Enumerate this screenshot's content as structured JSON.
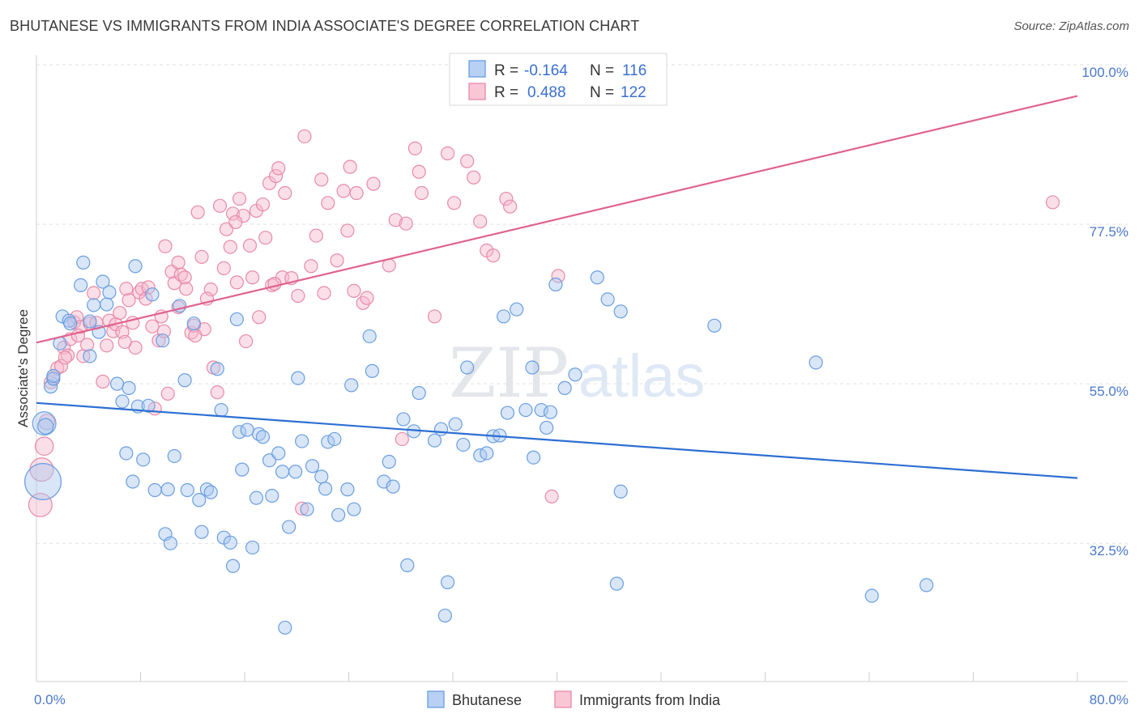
{
  "header": {
    "title": "BHUTANESE VS IMMIGRANTS FROM INDIA ASSOCIATE'S DEGREE CORRELATION CHART",
    "source": "Source: ZipAtlas.com"
  },
  "legend_box": {
    "rows": [
      {
        "r_label": "R =",
        "r_value": "-0.164",
        "n_label": "N =",
        "n_value": "116"
      },
      {
        "r_label": "R =",
        "r_value": "0.488",
        "n_label": "N =",
        "n_value": "122"
      }
    ]
  },
  "watermark": {
    "zip": "ZIP",
    "atlas": "atlas"
  },
  "colors": {
    "blue_fill": "#a9c8f0",
    "blue_stroke": "#6a9ee0",
    "blue_line": "#2d6fd2",
    "pink_fill": "#f7b9cc",
    "pink_stroke": "#e88aa8",
    "pink_line": "#e0628f"
  },
  "chart_data": {
    "type": "scatter",
    "title": "BHUTANESE VS IMMIGRANTS FROM INDIA ASSOCIATE'S DEGREE CORRELATION CHART",
    "xlabel": "",
    "ylabel": "Associate's Degree",
    "xlim": [
      0,
      80
    ],
    "ylim": [
      13,
      100
    ],
    "x_tick_labels": [
      "0.0%",
      "80.0%"
    ],
    "y_ticks": [
      32.5,
      55.0,
      77.5,
      100.0
    ],
    "y_tick_labels": [
      "32.5%",
      "55.0%",
      "77.5%",
      "100.0%"
    ],
    "grid": "horizontal dashed",
    "legend_position": "top-center",
    "series": [
      {
        "name": "Bhutanese",
        "r": -0.164,
        "n": 116,
        "trend": {
          "x": [
            0,
            80
          ],
          "y": [
            52.3,
            41.7
          ]
        },
        "points": [
          [
            0.6,
            49.4,
            9
          ],
          [
            0.5,
            41.2,
            14
          ],
          [
            0.7,
            49.0,
            6
          ],
          [
            1.1,
            54.6,
            5
          ],
          [
            1.3,
            55.7,
            5
          ],
          [
            1.8,
            60.7,
            5
          ],
          [
            2.0,
            64.5,
            5
          ],
          [
            2.5,
            63.9,
            5
          ],
          [
            3.4,
            68.9,
            5
          ],
          [
            3.6,
            72.1,
            5
          ],
          [
            4.1,
            58.9,
            5
          ],
          [
            4.4,
            66.1,
            5
          ],
          [
            4.8,
            62.3,
            5
          ],
          [
            5.1,
            69.4,
            5
          ],
          [
            5.4,
            66.2,
            5
          ],
          [
            5.6,
            67.9,
            5
          ],
          [
            6.2,
            55.0,
            5
          ],
          [
            6.6,
            52.5,
            5
          ],
          [
            6.9,
            45.2,
            5
          ],
          [
            7.1,
            54.4,
            5
          ],
          [
            7.4,
            41.2,
            5
          ],
          [
            7.6,
            71.6,
            5
          ],
          [
            7.8,
            51.8,
            5
          ],
          [
            8.2,
            44.3,
            5
          ],
          [
            8.6,
            51.9,
            5
          ],
          [
            8.9,
            67.6,
            5
          ],
          [
            9.1,
            40.0,
            5
          ],
          [
            9.7,
            61.1,
            5
          ],
          [
            9.9,
            33.8,
            5
          ],
          [
            10.1,
            40.1,
            5
          ],
          [
            10.3,
            32.5,
            5
          ],
          [
            10.6,
            44.8,
            5
          ],
          [
            11.0,
            66.0,
            5
          ],
          [
            11.4,
            55.5,
            5
          ],
          [
            11.6,
            40.0,
            5
          ],
          [
            12.1,
            63.5,
            5
          ],
          [
            12.5,
            38.6,
            5
          ],
          [
            12.7,
            34.1,
            5
          ],
          [
            13.1,
            40.1,
            5
          ],
          [
            13.4,
            39.7,
            5
          ],
          [
            13.9,
            57.1,
            5
          ],
          [
            14.2,
            51.3,
            5
          ],
          [
            14.4,
            33.3,
            5
          ],
          [
            14.9,
            32.6,
            5
          ],
          [
            15.1,
            29.3,
            5
          ],
          [
            15.4,
            64.1,
            5
          ],
          [
            15.6,
            48.2,
            5
          ],
          [
            15.8,
            42.9,
            5
          ],
          [
            16.2,
            48.5,
            5
          ],
          [
            16.6,
            31.9,
            5
          ],
          [
            16.9,
            38.9,
            5
          ],
          [
            17.1,
            47.9,
            5
          ],
          [
            17.4,
            47.5,
            5
          ],
          [
            17.9,
            44.2,
            5
          ],
          [
            18.1,
            39.2,
            5
          ],
          [
            18.6,
            45.2,
            5
          ],
          [
            18.9,
            42.6,
            5
          ],
          [
            19.1,
            20.6,
            5
          ],
          [
            19.4,
            34.8,
            5
          ],
          [
            19.9,
            42.6,
            5
          ],
          [
            20.1,
            55.8,
            5
          ],
          [
            20.4,
            46.9,
            5
          ],
          [
            20.8,
            37.3,
            5
          ],
          [
            21.2,
            43.4,
            5
          ],
          [
            21.9,
            41.9,
            5
          ],
          [
            22.2,
            40.2,
            5
          ],
          [
            22.4,
            46.8,
            5
          ],
          [
            22.9,
            47.2,
            5
          ],
          [
            23.2,
            36.5,
            5
          ],
          [
            23.9,
            40.1,
            5
          ],
          [
            24.2,
            54.8,
            5
          ],
          [
            24.4,
            37.3,
            5
          ],
          [
            25.6,
            61.7,
            5
          ],
          [
            25.8,
            56.8,
            5
          ],
          [
            26.7,
            41.2,
            5
          ],
          [
            27.1,
            44.0,
            5
          ],
          [
            27.4,
            40.5,
            5
          ],
          [
            28.2,
            50.0,
            5
          ],
          [
            28.5,
            29.4,
            5
          ],
          [
            29.0,
            48.3,
            5
          ],
          [
            29.4,
            53.7,
            5
          ],
          [
            30.6,
            47.0,
            5
          ],
          [
            31.1,
            48.6,
            5
          ],
          [
            31.6,
            27.0,
            5
          ],
          [
            31.4,
            22.3,
            5
          ],
          [
            32.2,
            49.3,
            5
          ],
          [
            32.8,
            46.4,
            5
          ],
          [
            33.1,
            57.3,
            5
          ],
          [
            34.1,
            44.9,
            5
          ],
          [
            34.6,
            45.2,
            5
          ],
          [
            35.1,
            47.6,
            5
          ],
          [
            35.6,
            47.7,
            5
          ],
          [
            35.9,
            64.5,
            5
          ],
          [
            36.2,
            50.9,
            5
          ],
          [
            36.9,
            65.5,
            5
          ],
          [
            37.6,
            51.3,
            5
          ],
          [
            38.1,
            57.3,
            5
          ],
          [
            38.2,
            44.6,
            5
          ],
          [
            38.8,
            51.3,
            5
          ],
          [
            39.2,
            48.8,
            5
          ],
          [
            39.5,
            51.0,
            5
          ],
          [
            39.9,
            69.0,
            5
          ],
          [
            40.6,
            54.4,
            5
          ],
          [
            41.4,
            56.3,
            5
          ],
          [
            43.1,
            70.0,
            5
          ],
          [
            43.9,
            66.9,
            5
          ],
          [
            44.6,
            26.8,
            5
          ],
          [
            44.9,
            39.8,
            5
          ],
          [
            44.9,
            65.2,
            5
          ],
          [
            52.1,
            63.2,
            5
          ],
          [
            59.9,
            58.0,
            5
          ],
          [
            64.2,
            25.1,
            5
          ],
          [
            68.4,
            26.6,
            5
          ],
          [
            4.1,
            63.8,
            5
          ],
          [
            2.6,
            63.5,
            5
          ],
          [
            1.3,
            56.1,
            5
          ]
        ]
      },
      {
        "name": "Immigrants from India",
        "r": 0.488,
        "n": 122,
        "trend": {
          "x": [
            0,
            80
          ],
          "y": [
            60.8,
            95.6
          ]
        },
        "points": [
          [
            0.3,
            37.9,
            9
          ],
          [
            0.4,
            42.9,
            9
          ],
          [
            0.6,
            46.2,
            7
          ],
          [
            0.8,
            49.6,
            6
          ],
          [
            1.1,
            55.2,
            5
          ],
          [
            1.3,
            55.8,
            5
          ],
          [
            1.6,
            57.2,
            5
          ],
          [
            1.9,
            57.5,
            5
          ],
          [
            2.1,
            60.1,
            5
          ],
          [
            2.4,
            59.0,
            5
          ],
          [
            2.6,
            61.3,
            5
          ],
          [
            2.9,
            63.7,
            5
          ],
          [
            3.1,
            64.4,
            5
          ],
          [
            3.4,
            63.0,
            5
          ],
          [
            3.6,
            58.9,
            5
          ],
          [
            3.9,
            60.5,
            5
          ],
          [
            4.1,
            63.5,
            5
          ],
          [
            4.4,
            67.8,
            5
          ],
          [
            4.6,
            63.6,
            5
          ],
          [
            5.1,
            55.3,
            5
          ],
          [
            5.4,
            60.4,
            5
          ],
          [
            5.6,
            63.9,
            5
          ],
          [
            5.9,
            62.4,
            5
          ],
          [
            6.1,
            63.4,
            5
          ],
          [
            6.4,
            65.0,
            5
          ],
          [
            6.6,
            62.3,
            5
          ],
          [
            6.9,
            68.4,
            5
          ],
          [
            7.1,
            66.8,
            5
          ],
          [
            7.4,
            63.6,
            5
          ],
          [
            7.6,
            60.1,
            5
          ],
          [
            7.9,
            67.9,
            5
          ],
          [
            8.1,
            68.4,
            5
          ],
          [
            8.4,
            67.0,
            5
          ],
          [
            8.6,
            68.6,
            5
          ],
          [
            8.9,
            63.1,
            5
          ],
          [
            9.1,
            51.5,
            5
          ],
          [
            9.4,
            61.1,
            5
          ],
          [
            9.6,
            64.5,
            5
          ],
          [
            9.9,
            74.4,
            5
          ],
          [
            10.1,
            53.6,
            5
          ],
          [
            10.4,
            70.8,
            5
          ],
          [
            10.6,
            69.2,
            5
          ],
          [
            10.9,
            72.1,
            5
          ],
          [
            11.1,
            70.4,
            5
          ],
          [
            11.4,
            70.0,
            5
          ],
          [
            11.9,
            62.2,
            5
          ],
          [
            12.1,
            63.2,
            5
          ],
          [
            12.4,
            79.2,
            5
          ],
          [
            12.7,
            72.9,
            5
          ],
          [
            12.9,
            62.7,
            5
          ],
          [
            13.4,
            68.3,
            5
          ],
          [
            13.6,
            57.3,
            5
          ],
          [
            13.9,
            53.8,
            5
          ],
          [
            14.1,
            80.1,
            5
          ],
          [
            14.4,
            71.3,
            5
          ],
          [
            14.6,
            76.8,
            5
          ],
          [
            14.9,
            74.3,
            5
          ],
          [
            15.1,
            79.0,
            5
          ],
          [
            15.4,
            69.3,
            5
          ],
          [
            15.6,
            81.1,
            5
          ],
          [
            15.9,
            78.7,
            5
          ],
          [
            16.1,
            61.0,
            5
          ],
          [
            16.4,
            74.5,
            5
          ],
          [
            16.6,
            70.0,
            5
          ],
          [
            16.9,
            79.4,
            5
          ],
          [
            17.1,
            64.4,
            5
          ],
          [
            17.4,
            80.3,
            5
          ],
          [
            17.6,
            75.6,
            5
          ],
          [
            17.9,
            83.3,
            5
          ],
          [
            18.1,
            68.9,
            5
          ],
          [
            18.4,
            84.3,
            5
          ],
          [
            18.6,
            85.4,
            5
          ],
          [
            18.9,
            70.0,
            5
          ],
          [
            19.1,
            81.9,
            5
          ],
          [
            19.6,
            69.9,
            5
          ],
          [
            20.1,
            67.4,
            5
          ],
          [
            20.4,
            37.4,
            5
          ],
          [
            20.6,
            89.9,
            5
          ],
          [
            21.1,
            71.6,
            5
          ],
          [
            21.9,
            83.8,
            5
          ],
          [
            22.1,
            67.8,
            5
          ],
          [
            22.4,
            80.5,
            5
          ],
          [
            23.1,
            72.4,
            5
          ],
          [
            23.6,
            82.2,
            5
          ],
          [
            24.1,
            85.6,
            5
          ],
          [
            24.4,
            68.1,
            5
          ],
          [
            24.6,
            81.9,
            5
          ],
          [
            25.1,
            66.4,
            5
          ],
          [
            25.4,
            67.1,
            5
          ],
          [
            25.9,
            83.2,
            5
          ],
          [
            27.1,
            71.7,
            5
          ],
          [
            27.6,
            78.1,
            5
          ],
          [
            28.1,
            47.2,
            5
          ],
          [
            28.4,
            77.6,
            5
          ],
          [
            29.1,
            88.2,
            5
          ],
          [
            29.4,
            84.9,
            5
          ],
          [
            29.6,
            81.9,
            5
          ],
          [
            30.6,
            64.5,
            5
          ],
          [
            31.6,
            87.5,
            5
          ],
          [
            32.1,
            80.5,
            5
          ],
          [
            33.1,
            86.4,
            5
          ],
          [
            33.6,
            84.1,
            5
          ],
          [
            34.1,
            77.9,
            5
          ],
          [
            34.6,
            73.8,
            5
          ],
          [
            35.1,
            73.1,
            5
          ],
          [
            36.1,
            81.1,
            5
          ],
          [
            36.4,
            80.0,
            5
          ],
          [
            39.6,
            39.1,
            5
          ],
          [
            40.1,
            70.2,
            5
          ],
          [
            78.1,
            80.6,
            5
          ],
          [
            12.2,
            61.8,
            5
          ],
          [
            6.8,
            60.9,
            5
          ],
          [
            3.2,
            61.8,
            5
          ],
          [
            2.2,
            58.7,
            5
          ],
          [
            9.8,
            62.4,
            5
          ],
          [
            10.9,
            65.8,
            5
          ],
          [
            11.5,
            68.4,
            5
          ],
          [
            13.1,
            67.0,
            5
          ],
          [
            15.3,
            77.8,
            5
          ],
          [
            18.3,
            69.1,
            5
          ],
          [
            21.5,
            75.9,
            5
          ],
          [
            23.9,
            76.6,
            5
          ]
        ]
      }
    ]
  }
}
